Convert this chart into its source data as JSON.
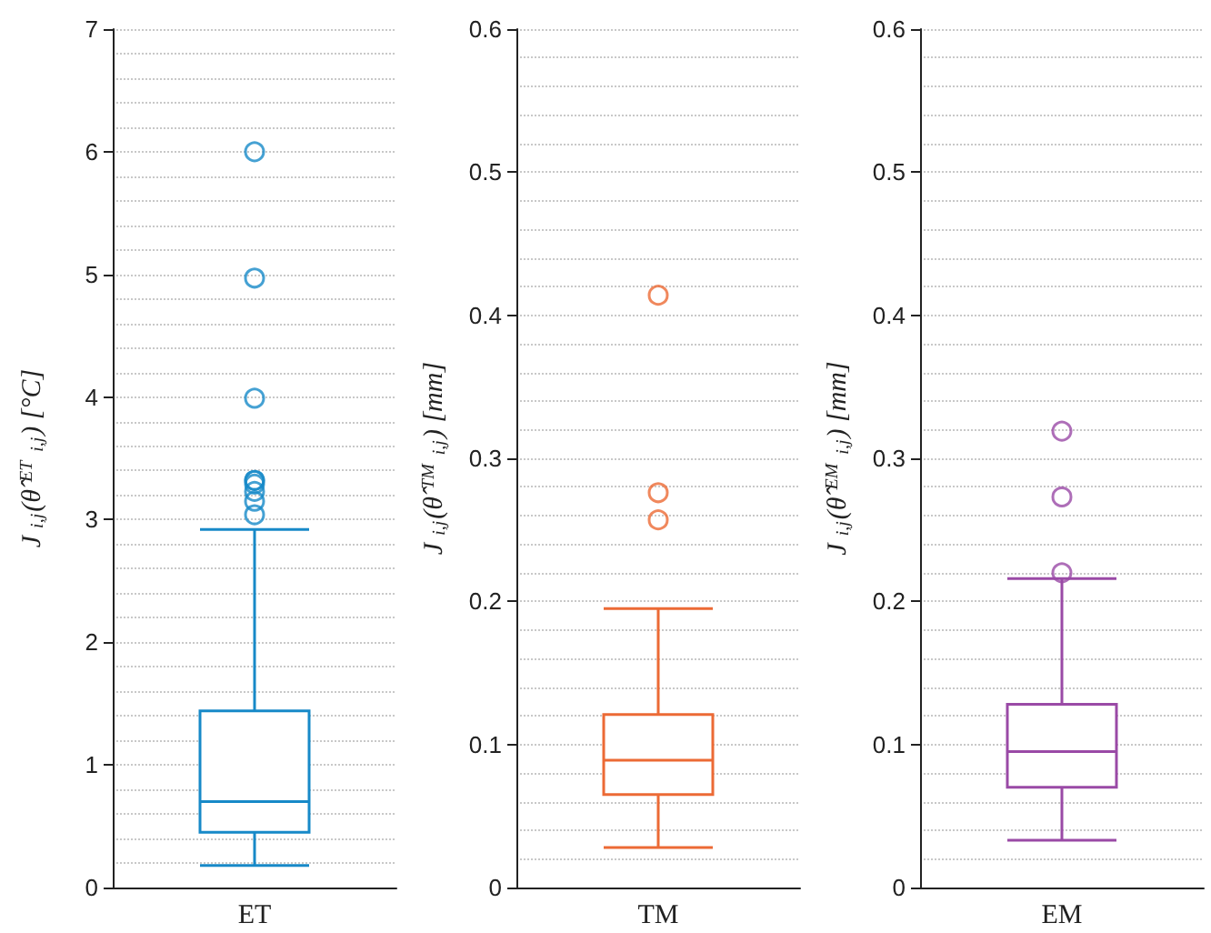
{
  "chart_data": [
    {
      "type": "box",
      "categories": [
        "ET"
      ],
      "ylabel": "J$_{i,j}$(θ̂$^{ET}$$_{i,j}$) [°C]",
      "color": "#1789c8",
      "ylim": [
        0,
        7
      ],
      "yticks": [
        0,
        1,
        2,
        3,
        4,
        5,
        6,
        7
      ],
      "grid": true,
      "marker": "circle",
      "boxes": [
        {
          "low": 0.18,
          "q1": 0.45,
          "median": 0.7,
          "q3": 1.44,
          "high": 2.92,
          "outliers": [
            6.0,
            4.97,
            3.99,
            3.32,
            3.23,
            3.29,
            3.15,
            3.32,
            3.04
          ]
        }
      ]
    },
    {
      "type": "box",
      "categories": [
        "TM"
      ],
      "ylabel": "J$_{i,j}$(θ̂$^{TM}$$_{i,j}$) [mm]",
      "color": "#ec6a35",
      "ylim": [
        0,
        0.6
      ],
      "yticks": [
        0,
        0.1,
        0.2,
        0.3,
        0.4,
        0.5,
        0.6
      ],
      "grid": true,
      "marker": "circle",
      "boxes": [
        {
          "low": 0.028,
          "q1": 0.065,
          "median": 0.089,
          "q3": 0.121,
          "high": 0.195,
          "outliers": [
            0.414,
            0.276,
            0.257
          ]
        }
      ]
    },
    {
      "type": "box",
      "categories": [
        "EM"
      ],
      "ylabel": "J$_{i,j}$(θ̂$^{EM}$$_{i,j}$) [mm]",
      "color": "#9a4aa6",
      "ylim": [
        0,
        0.6
      ],
      "yticks": [
        0,
        0.1,
        0.2,
        0.3,
        0.4,
        0.5,
        0.6
      ],
      "grid": true,
      "marker": "circle",
      "boxes": [
        {
          "low": 0.033,
          "q1": 0.07,
          "median": 0.095,
          "q3": 0.128,
          "high": 0.216,
          "outliers": [
            0.22,
            0.273,
            0.319
          ]
        }
      ]
    }
  ]
}
